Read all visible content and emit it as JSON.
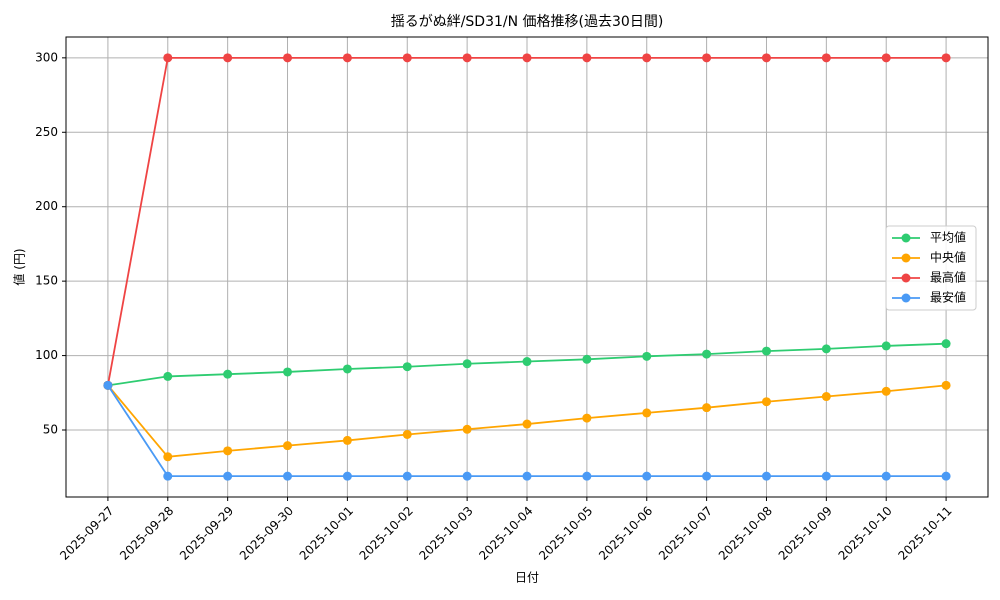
{
  "chart_data": {
    "type": "line",
    "title": "揺るがぬ絆/SD31/N 価格推移(過去30日間)",
    "x_label": "日付",
    "y_label": "値 (円)",
    "categories": [
      "2025-09-27",
      "2025-09-28",
      "2025-09-29",
      "2025-09-30",
      "2025-10-01",
      "2025-10-02",
      "2025-10-03",
      "2025-10-04",
      "2025-10-05",
      "2025-10-06",
      "2025-10-07",
      "2025-10-08",
      "2025-10-09",
      "2025-10-10",
      "2025-10-11"
    ],
    "series": [
      {
        "name": "平均値",
        "color": "#2ecc71",
        "values": [
          80,
          86,
          87.5,
          89,
          91,
          92.5,
          94.5,
          96,
          97.5,
          99.5,
          101,
          103,
          104.5,
          106.5,
          108
        ]
      },
      {
        "name": "中央値",
        "color": "#ffa500",
        "values": [
          80,
          32,
          36,
          39.5,
          43,
          47,
          50.5,
          54,
          58,
          61.5,
          65,
          69,
          72.5,
          76,
          80
        ]
      },
      {
        "name": "最高値",
        "color": "#ef4444",
        "values": [
          80,
          300,
          300,
          300,
          300,
          300,
          300,
          300,
          300,
          300,
          300,
          300,
          300,
          300,
          300
        ]
      },
      {
        "name": "最安値",
        "color": "#4a9af5",
        "values": [
          80,
          19,
          19,
          19,
          19,
          19,
          19,
          19,
          19,
          19,
          19,
          19,
          19,
          19,
          19
        ]
      }
    ],
    "ylim": [
      5,
      314
    ],
    "yticks": [
      50,
      100,
      150,
      200,
      250,
      300
    ],
    "grid": true,
    "legend": "right"
  }
}
